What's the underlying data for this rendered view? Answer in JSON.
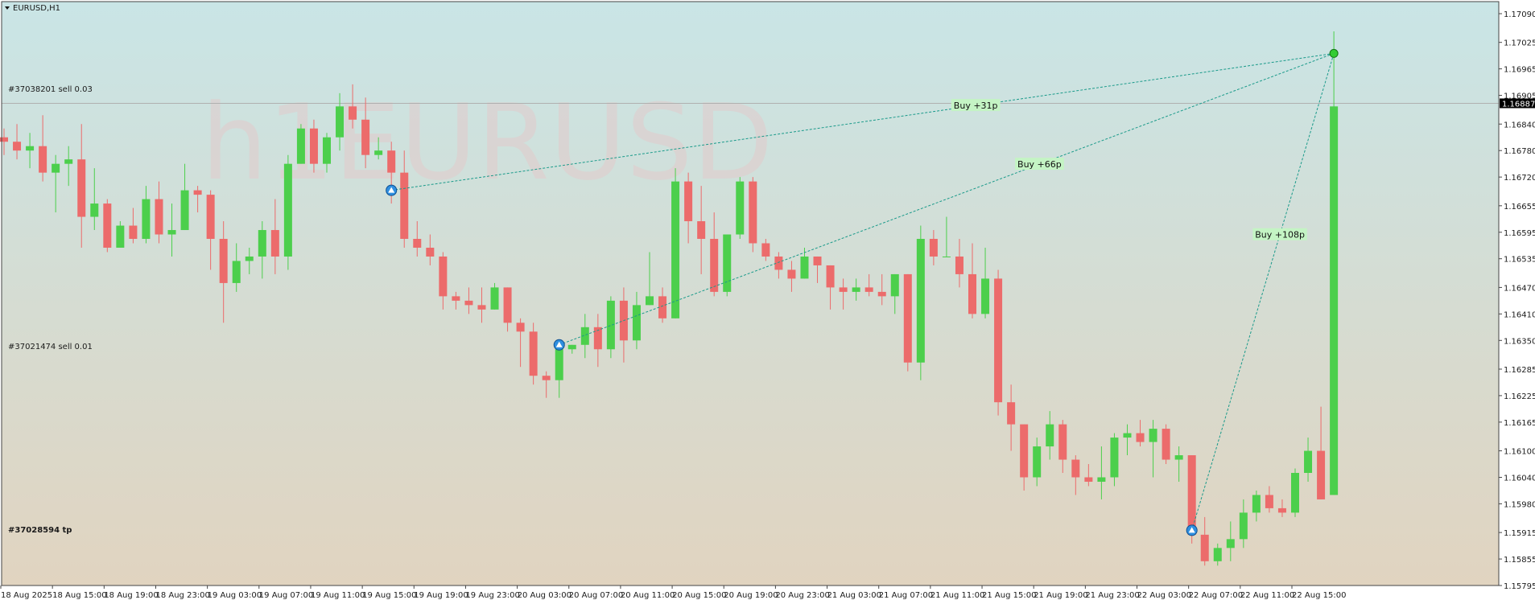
{
  "symbol_title": "EURUSD,H1",
  "watermark": "h1EURUSD",
  "current_price": "1.16887",
  "order_labels": [
    "#37038201 sell 0.03",
    "#37021474 sell 0.01",
    "#37028594 tp"
  ],
  "trades": [
    {
      "entry_index": 30,
      "entry_price": 1.1669,
      "exit_index": 103,
      "exit_price": 1.17,
      "label": "Buy +31p"
    },
    {
      "entry_index": 43,
      "entry_price": 1.1634,
      "exit_index": 103,
      "exit_price": 1.17,
      "label": "Buy +66p"
    },
    {
      "entry_index": 92,
      "entry_price": 1.1592,
      "exit_index": 103,
      "exit_price": 1.17,
      "label": "Buy +108p"
    }
  ],
  "colors": {
    "bull": "#4ccf4c",
    "bear": "#ec6b6b",
    "bg_top": "#c9e5e6",
    "bg_bottom": "#e1d4c0",
    "trade_line": "#1a9a8a",
    "label_bg": "#c4f4c4",
    "marker_blue": "#2f8fe0",
    "exit_marker": "#33cc33",
    "price_line": "#b0b0b0"
  },
  "chart_data": {
    "type": "candlestick",
    "ylim": [
      1.15795,
      1.1709
    ],
    "y_ticks": [
      "1.17090",
      "1.17025",
      "1.16965",
      "1.16905",
      "1.16840",
      "1.16780",
      "1.16720",
      "1.16655",
      "1.16595",
      "1.16535",
      "1.16470",
      "1.16410",
      "1.16350",
      "1.16285",
      "1.16225",
      "1.16165",
      "1.16100",
      "1.16040",
      "1.15980",
      "1.15915",
      "1.15855",
      "1.15795"
    ],
    "x_ticks": [
      {
        "index": 0,
        "label": "18 Aug 2025"
      },
      {
        "index": 4,
        "label": "18 Aug 15:00"
      },
      {
        "index": 8,
        "label": "18 Aug 19:00"
      },
      {
        "index": 12,
        "label": "18 Aug 23:00"
      },
      {
        "index": 16,
        "label": "19 Aug 03:00"
      },
      {
        "index": 20,
        "label": "19 Aug 07:00"
      },
      {
        "index": 24,
        "label": "19 Aug 11:00"
      },
      {
        "index": 28,
        "label": "19 Aug 15:00"
      },
      {
        "index": 32,
        "label": "19 Aug 19:00"
      },
      {
        "index": 36,
        "label": "19 Aug 23:00"
      },
      {
        "index": 40,
        "label": "20 Aug 03:00"
      },
      {
        "index": 44,
        "label": "20 Aug 07:00"
      },
      {
        "index": 48,
        "label": "20 Aug 11:00"
      },
      {
        "index": 52,
        "label": "20 Aug 15:00"
      },
      {
        "index": 56,
        "label": "20 Aug 19:00"
      },
      {
        "index": 60,
        "label": "20 Aug 23:00"
      },
      {
        "index": 64,
        "label": "21 Aug 03:00"
      },
      {
        "index": 68,
        "label": "21 Aug 07:00"
      },
      {
        "index": 72,
        "label": "21 Aug 11:00"
      },
      {
        "index": 76,
        "label": "21 Aug 15:00"
      },
      {
        "index": 80,
        "label": "21 Aug 19:00"
      },
      {
        "index": 84,
        "label": "21 Aug 23:00"
      },
      {
        "index": 88,
        "label": "22 Aug 03:00"
      },
      {
        "index": 92,
        "label": "22 Aug 07:00"
      },
      {
        "index": 96,
        "label": "22 Aug 11:00"
      },
      {
        "index": 100,
        "label": "22 Aug 15:00"
      }
    ],
    "candles": [
      [
        1.1681,
        1.1683,
        1.1677,
        1.168
      ],
      [
        1.168,
        1.1684,
        1.1676,
        1.1678
      ],
      [
        1.1678,
        1.1682,
        1.1674,
        1.1679
      ],
      [
        1.1679,
        1.1686,
        1.1671,
        1.1673
      ],
      [
        1.1673,
        1.1677,
        1.1664,
        1.1675
      ],
      [
        1.1675,
        1.1679,
        1.167,
        1.1676
      ],
      [
        1.1676,
        1.1684,
        1.1656,
        1.1663
      ],
      [
        1.1663,
        1.1674,
        1.166,
        1.1666
      ],
      [
        1.1666,
        1.1667,
        1.1655,
        1.1656
      ],
      [
        1.1656,
        1.1662,
        1.1656,
        1.1661
      ],
      [
        1.1661,
        1.1665,
        1.1657,
        1.1658
      ],
      [
        1.1658,
        1.167,
        1.1657,
        1.1667
      ],
      [
        1.1667,
        1.1671,
        1.1657,
        1.1659
      ],
      [
        1.1659,
        1.1666,
        1.1654,
        1.166
      ],
      [
        1.166,
        1.1675,
        1.166,
        1.1669
      ],
      [
        1.1669,
        1.167,
        1.1664,
        1.1668
      ],
      [
        1.1668,
        1.1669,
        1.1651,
        1.1658
      ],
      [
        1.1658,
        1.1662,
        1.1639,
        1.1648
      ],
      [
        1.1648,
        1.1657,
        1.1646,
        1.1653
      ],
      [
        1.1653,
        1.1656,
        1.165,
        1.1654
      ],
      [
        1.1654,
        1.1662,
        1.1649,
        1.166
      ],
      [
        1.166,
        1.1667,
        1.165,
        1.1654
      ],
      [
        1.1654,
        1.1677,
        1.1651,
        1.1675
      ],
      [
        1.1675,
        1.1684,
        1.1675,
        1.1683
      ],
      [
        1.1683,
        1.1685,
        1.1673,
        1.1675
      ],
      [
        1.1675,
        1.1682,
        1.1673,
        1.1681
      ],
      [
        1.1681,
        1.1691,
        1.1678,
        1.1688
      ],
      [
        1.1688,
        1.1693,
        1.1683,
        1.1685
      ],
      [
        1.1685,
        1.169,
        1.1674,
        1.1677
      ],
      [
        1.1677,
        1.1681,
        1.1676,
        1.1678
      ],
      [
        1.1678,
        1.168,
        1.1666,
        1.1673
      ],
      [
        1.1673,
        1.1678,
        1.1656,
        1.1658
      ],
      [
        1.1658,
        1.1662,
        1.1654,
        1.1656
      ],
      [
        1.1656,
        1.1659,
        1.1652,
        1.1654
      ],
      [
        1.1654,
        1.1655,
        1.1642,
        1.1645
      ],
      [
        1.1645,
        1.1646,
        1.1642,
        1.1644
      ],
      [
        1.1644,
        1.1647,
        1.1641,
        1.1643
      ],
      [
        1.1643,
        1.1647,
        1.1639,
        1.1642
      ],
      [
        1.1642,
        1.1648,
        1.1642,
        1.1647
      ],
      [
        1.1647,
        1.1647,
        1.1637,
        1.1639
      ],
      [
        1.1639,
        1.164,
        1.1629,
        1.1637
      ],
      [
        1.1637,
        1.1639,
        1.1625,
        1.1627
      ],
      [
        1.1627,
        1.1628,
        1.1622,
        1.1626
      ],
      [
        1.1626,
        1.1634,
        1.1622,
        1.1633
      ],
      [
        1.1633,
        1.1634,
        1.1632,
        1.1634
      ],
      [
        1.1634,
        1.1641,
        1.1631,
        1.1638
      ],
      [
        1.1638,
        1.1641,
        1.1629,
        1.1633
      ],
      [
        1.1633,
        1.1645,
        1.1631,
        1.1644
      ],
      [
        1.1644,
        1.1647,
        1.163,
        1.1635
      ],
      [
        1.1635,
        1.1646,
        1.1633,
        1.1643
      ],
      [
        1.1643,
        1.1655,
        1.1643,
        1.1645
      ],
      [
        1.1645,
        1.1647,
        1.1639,
        1.164
      ],
      [
        1.164,
        1.1674,
        1.164,
        1.1671
      ],
      [
        1.1671,
        1.1673,
        1.1657,
        1.1662
      ],
      [
        1.1662,
        1.167,
        1.165,
        1.1658
      ],
      [
        1.1658,
        1.1664,
        1.1645,
        1.1646
      ],
      [
        1.1646,
        1.1659,
        1.1645,
        1.1659
      ],
      [
        1.1659,
        1.1672,
        1.1658,
        1.1671
      ],
      [
        1.1671,
        1.1672,
        1.1655,
        1.1657
      ],
      [
        1.1657,
        1.1658,
        1.1653,
        1.1654
      ],
      [
        1.1654,
        1.1655,
        1.1649,
        1.1651
      ],
      [
        1.1651,
        1.1653,
        1.1646,
        1.1649
      ],
      [
        1.1649,
        1.1656,
        1.1649,
        1.1654
      ],
      [
        1.1654,
        1.1654,
        1.1648,
        1.1652
      ],
      [
        1.1652,
        1.1652,
        1.1642,
        1.1647
      ],
      [
        1.1647,
        1.1649,
        1.1642,
        1.1646
      ],
      [
        1.1646,
        1.1649,
        1.1644,
        1.1647
      ],
      [
        1.1647,
        1.165,
        1.1645,
        1.1646
      ],
      [
        1.1646,
        1.165,
        1.1643,
        1.1645
      ],
      [
        1.1645,
        1.165,
        1.1641,
        1.165
      ],
      [
        1.165,
        1.165,
        1.1628,
        1.163
      ],
      [
        1.163,
        1.1661,
        1.1626,
        1.1658
      ],
      [
        1.1658,
        1.166,
        1.1652,
        1.1654
      ],
      [
        1.1654,
        1.1663,
        1.1654,
        1.1654
      ],
      [
        1.1654,
        1.1658,
        1.1647,
        1.165
      ],
      [
        1.165,
        1.1657,
        1.164,
        1.1641
      ],
      [
        1.1641,
        1.1656,
        1.164,
        1.1649
      ],
      [
        1.1649,
        1.1651,
        1.1618,
        1.1621
      ],
      [
        1.1621,
        1.1625,
        1.161,
        1.1616
      ],
      [
        1.1616,
        1.1616,
        1.1601,
        1.1604
      ],
      [
        1.1604,
        1.1613,
        1.1602,
        1.1611
      ],
      [
        1.1611,
        1.1619,
        1.1608,
        1.1616
      ],
      [
        1.1616,
        1.1617,
        1.1605,
        1.1608
      ],
      [
        1.1608,
        1.1609,
        1.16,
        1.1604
      ],
      [
        1.1604,
        1.1607,
        1.1602,
        1.1603
      ],
      [
        1.1603,
        1.1611,
        1.1599,
        1.1604
      ],
      [
        1.1604,
        1.1614,
        1.1602,
        1.1613
      ],
      [
        1.1613,
        1.1616,
        1.1609,
        1.1614
      ],
      [
        1.1614,
        1.1617,
        1.1611,
        1.1612
      ],
      [
        1.1612,
        1.1617,
        1.1604,
        1.1615
      ],
      [
        1.1615,
        1.1616,
        1.1607,
        1.1608
      ],
      [
        1.1608,
        1.1611,
        1.1603,
        1.1609
      ],
      [
        1.1609,
        1.1609,
        1.1589,
        1.1591
      ],
      [
        1.1591,
        1.1595,
        1.1584,
        1.1585
      ],
      [
        1.1585,
        1.1589,
        1.1584,
        1.1588
      ],
      [
        1.1588,
        1.1594,
        1.1585,
        1.159
      ],
      [
        1.159,
        1.1599,
        1.1588,
        1.1596
      ],
      [
        1.1596,
        1.1601,
        1.1594,
        1.16
      ],
      [
        1.16,
        1.1602,
        1.1596,
        1.1597
      ],
      [
        1.1597,
        1.1599,
        1.1595,
        1.1596
      ],
      [
        1.1596,
        1.1606,
        1.1595,
        1.1605
      ],
      [
        1.1605,
        1.1613,
        1.1603,
        1.161
      ],
      [
        1.161,
        1.162,
        1.1599,
        1.1599
      ],
      [
        1.16,
        1.1705,
        1.16,
        1.1688
      ]
    ]
  }
}
